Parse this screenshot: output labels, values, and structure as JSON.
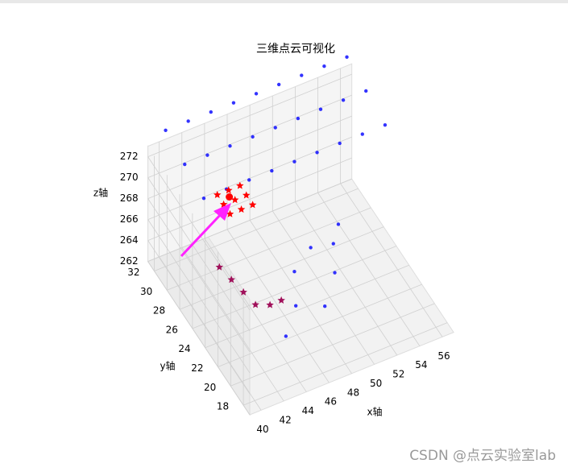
{
  "chart_data": {
    "type": "scatter3d",
    "title": "三维点云可视化",
    "xlabel": "x轴",
    "ylabel": "y轴",
    "zlabel": "z轴",
    "xlim": [
      39,
      57
    ],
    "ylim": [
      17,
      33
    ],
    "zlim": [
      262,
      273
    ],
    "xticks": [
      40,
      42,
      44,
      46,
      48,
      50,
      52,
      54,
      56
    ],
    "yticks": [
      18,
      20,
      22,
      24,
      26,
      28,
      30,
      32
    ],
    "zticks": [
      262,
      264,
      266,
      268,
      270,
      272
    ],
    "grid": true,
    "series": [
      {
        "color": "#0000ff",
        "marker": "dot",
        "x": [
          40,
          42,
          44,
          46,
          48,
          50,
          52,
          54,
          56,
          40,
          42,
          44,
          46,
          48,
          50,
          52,
          54,
          56,
          40,
          42,
          44,
          46,
          48,
          50,
          52,
          54,
          56,
          47,
          49,
          51,
          45,
          52,
          53,
          48,
          50
        ],
        "y": [
          26,
          26,
          26,
          26,
          26,
          26,
          26,
          26,
          26,
          29,
          29,
          29,
          29,
          29,
          29,
          29,
          29,
          29,
          32,
          32,
          32,
          32,
          32,
          32,
          32,
          32,
          32,
          24,
          23,
          25,
          22,
          27,
          28,
          26,
          27
        ],
        "z": [
          274,
          274,
          274,
          274,
          274,
          274,
          274,
          274,
          274,
          274.5,
          274.5,
          274.5,
          274.5,
          274.5,
          274.5,
          274.5,
          274.5,
          274.5,
          275,
          275,
          275,
          275,
          275,
          275,
          275,
          275,
          275,
          262.5,
          262.5,
          263,
          262.3,
          263.5,
          264,
          263.5,
          264
        ]
      },
      {
        "color": "#ff0000",
        "marker": "star",
        "x": [
          44,
          45,
          46,
          44,
          45,
          46,
          44,
          45,
          46
        ],
        "y": [
          29,
          29,
          29,
          30,
          30,
          30,
          31,
          31,
          31
        ],
        "z": [
          268,
          268,
          268,
          268,
          268,
          268,
          268,
          268,
          268
        ]
      },
      {
        "color": "#a0105a",
        "marker": "star",
        "x": [
          43,
          43.5,
          44,
          45,
          46,
          42.5
        ],
        "y": [
          27,
          26,
          25,
          24.5,
          24.5,
          28
        ],
        "z": [
          264,
          263.5,
          263,
          263,
          263,
          264.5
        ]
      },
      {
        "color": "#ff0000",
        "marker": "circle",
        "x": [
          44.5
        ],
        "y": [
          30
        ],
        "z": [
          268.5
        ]
      }
    ],
    "watermark": "CSDN @点云实验室lab"
  }
}
